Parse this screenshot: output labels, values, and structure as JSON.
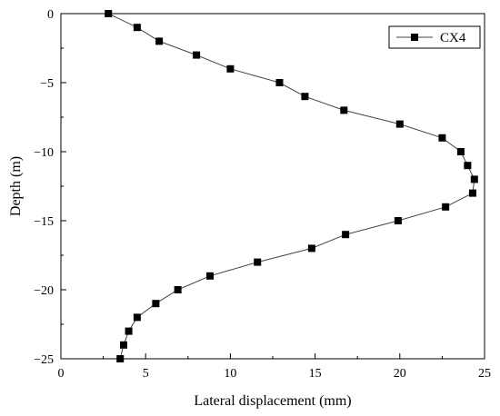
{
  "chart_data": {
    "type": "line",
    "xlabel": "Lateral displacement (mm)",
    "ylabel": "Depth (m)",
    "xlim": [
      0,
      25
    ],
    "ylim": [
      -25,
      0
    ],
    "xticks": [
      0,
      5,
      10,
      15,
      20,
      25
    ],
    "yticks": [
      0,
      -5,
      -10,
      -15,
      -20,
      -25
    ],
    "xtick_labels": [
      "0",
      "5",
      "10",
      "15",
      "20",
      "25"
    ],
    "ytick_labels": [
      "0",
      "−5",
      "−10",
      "−15",
      "−20",
      "−25"
    ],
    "grid": false,
    "legend": {
      "position": "top-right"
    },
    "colors": {
      "series": "#000000",
      "line": "#444444"
    },
    "series": [
      {
        "name": "CX4",
        "marker": "square",
        "x": [
          2.8,
          4.5,
          5.8,
          8.0,
          10.0,
          12.9,
          14.4,
          16.7,
          20.0,
          22.5,
          23.6,
          24.0,
          24.4,
          24.3,
          22.7,
          19.9,
          16.8,
          14.8,
          11.6,
          8.8,
          6.9,
          5.6,
          4.5,
          4.0,
          3.7,
          3.5
        ],
        "y": [
          0,
          -1,
          -2,
          -3,
          -4,
          -5,
          -6,
          -7,
          -8,
          -9,
          -10,
          -11,
          -12,
          -13,
          -14,
          -15,
          -16,
          -17,
          -18,
          -19,
          -20,
          -21,
          -22,
          -23,
          -24,
          -25
        ]
      }
    ]
  }
}
